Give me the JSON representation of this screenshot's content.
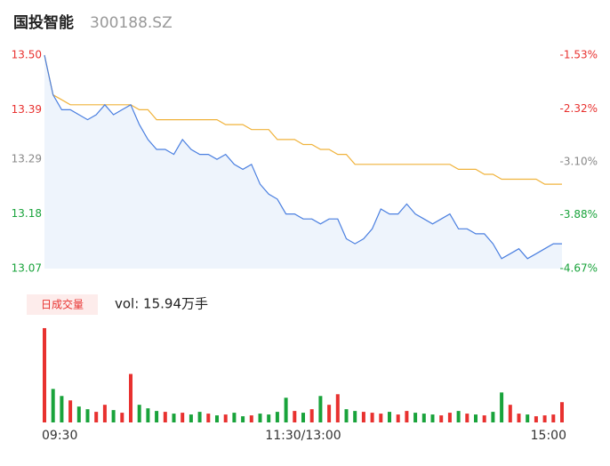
{
  "chart_data": {
    "type": "line",
    "title": "国投智能",
    "subtitle": "300188.SZ",
    "x": [
      0,
      4,
      8,
      12,
      16,
      20,
      24,
      28,
      32,
      36,
      40,
      44,
      48,
      52,
      56,
      60,
      64,
      68,
      72,
      76,
      80,
      84,
      88,
      92,
      96,
      100,
      104,
      108,
      112,
      116,
      120,
      124,
      128,
      132,
      136,
      140,
      144,
      148,
      152,
      156,
      160,
      164,
      168,
      172,
      176,
      180,
      184,
      188,
      192,
      196,
      200,
      204,
      208,
      212,
      216,
      220,
      224,
      228,
      232,
      236,
      240
    ],
    "xlim": [
      0,
      240
    ],
    "xticks": [
      {
        "value": 0,
        "label": "09:30"
      },
      {
        "value": 120,
        "label": "11:30/13:00"
      },
      {
        "value": 240,
        "label": "15:00"
      }
    ],
    "ylim": [
      13.07,
      13.5
    ],
    "yticks": [
      {
        "value": 13.5,
        "label": "13.50"
      },
      13.39,
      13.29,
      13.18,
      13.07
    ],
    "ytick_colors": [
      "#e8312f",
      "#e8312f",
      "#888888",
      "#19a33b",
      "#19a33b"
    ],
    "y2lim": [
      -4.67,
      -1.53
    ],
    "y2ticks": [
      {
        "value": -1.53,
        "label": "-1.53%"
      },
      {
        "value": -2.32,
        "label": "-2.32%"
      },
      {
        "value": -3.1,
        "label": "-3.10%"
      },
      {
        "value": -3.88,
        "label": "-3.88%"
      },
      {
        "value": -4.67,
        "label": "-4.67%"
      }
    ],
    "y2tick_colors": [
      "#e8312f",
      "#e8312f",
      "#888888",
      "#19a33b",
      "#19a33b"
    ],
    "series": [
      {
        "color": "#4a7fe0",
        "fill": "#eef4fc",
        "values": [
          13.5,
          13.42,
          13.39,
          13.39,
          13.38,
          13.37,
          13.38,
          13.4,
          13.38,
          13.39,
          13.4,
          13.36,
          13.33,
          13.31,
          13.31,
          13.3,
          13.33,
          13.31,
          13.3,
          13.3,
          13.29,
          13.3,
          13.28,
          13.27,
          13.28,
          13.24,
          13.22,
          13.21,
          13.18,
          13.18,
          13.17,
          13.17,
          13.16,
          13.17,
          13.17,
          13.13,
          13.12,
          13.13,
          13.15,
          13.19,
          13.18,
          13.18,
          13.2,
          13.18,
          13.17,
          13.16,
          13.17,
          13.18,
          13.15,
          13.15,
          13.14,
          13.14,
          13.12,
          13.09,
          13.1,
          13.11,
          13.09,
          13.1,
          13.11,
          13.12,
          13.12
        ]
      },
      {
        "color": "#f0b33c",
        "values": [
          13.5,
          13.42,
          13.41,
          13.4,
          13.4,
          13.4,
          13.4,
          13.4,
          13.4,
          13.4,
          13.4,
          13.39,
          13.39,
          13.37,
          13.37,
          13.37,
          13.37,
          13.37,
          13.37,
          13.37,
          13.37,
          13.36,
          13.36,
          13.36,
          13.35,
          13.35,
          13.35,
          13.33,
          13.33,
          13.33,
          13.32,
          13.32,
          13.31,
          13.31,
          13.3,
          13.3,
          13.28,
          13.28,
          13.28,
          13.28,
          13.28,
          13.28,
          13.28,
          13.28,
          13.28,
          13.28,
          13.28,
          13.28,
          13.27,
          13.27,
          13.27,
          13.26,
          13.26,
          13.25,
          13.25,
          13.25,
          13.25,
          13.25,
          13.24,
          13.24,
          13.24
        ]
      }
    ],
    "volume": {
      "type": "bar",
      "label": "日成交量",
      "summary": "vol: 15.94万手",
      "ylim": [
        0,
        1100
      ],
      "up_color": "#e8312f",
      "down_color": "#19a33b",
      "values": [
        1070,
        380,
        300,
        250,
        180,
        150,
        120,
        200,
        140,
        110,
        550,
        200,
        160,
        130,
        120,
        100,
        110,
        90,
        120,
        100,
        80,
        90,
        110,
        70,
        80,
        100,
        90,
        120,
        280,
        130,
        110,
        150,
        300,
        200,
        320,
        150,
        130,
        120,
        110,
        100,
        120,
        90,
        130,
        110,
        100,
        90,
        80,
        110,
        130,
        100,
        90,
        80,
        120,
        340,
        200,
        100,
        90,
        70,
        80,
        90,
        230
      ]
    }
  }
}
